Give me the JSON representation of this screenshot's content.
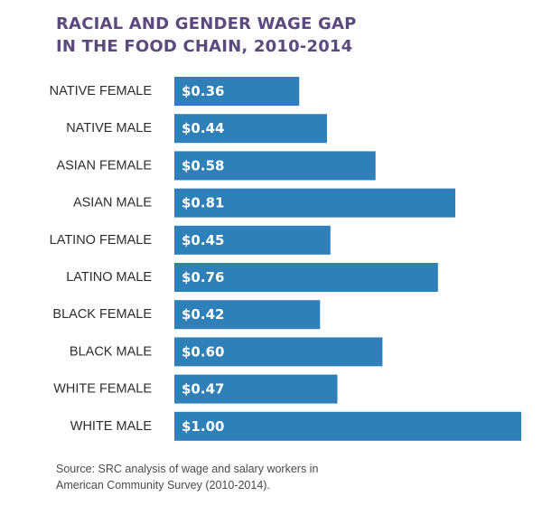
{
  "colors": {
    "title": "#5c4a7e",
    "label": "#2d2d2d",
    "bar": "#2f7fb8",
    "bar_text": "#ffffff",
    "source": "#4a4a4a"
  },
  "title_lines": [
    "RACIAL AND GENDER WAGE GAP",
    "IN THE FOOD CHAIN, 2010-2014"
  ],
  "source_lines": [
    "Source: SRC analysis of wage and salary workers in",
    "American Community Survey (2010-2014)."
  ],
  "chart_data": {
    "type": "bar",
    "orientation": "horizontal",
    "title": "RACIAL AND GENDER WAGE GAP IN THE FOOD CHAIN, 2010-2014",
    "categories": [
      "NATIVE FEMALE",
      "NATIVE MALE",
      "ASIAN FEMALE",
      "ASIAN MALE",
      "LATINO FEMALE",
      "LATINO MALE",
      "BLACK FEMALE",
      "BLACK MALE",
      "WHITE FEMALE",
      "WHITE MALE"
    ],
    "values": [
      0.36,
      0.44,
      0.58,
      0.81,
      0.45,
      0.76,
      0.42,
      0.6,
      0.47,
      1.0
    ],
    "data_labels": [
      "$0.36",
      "$0.44",
      "$0.58",
      "$0.81",
      "$0.45",
      "$0.76",
      "$0.42",
      "$0.60",
      "$0.47",
      "$1.00"
    ],
    "xlim": [
      0,
      1.0
    ],
    "grid": false,
    "legend": "none"
  }
}
